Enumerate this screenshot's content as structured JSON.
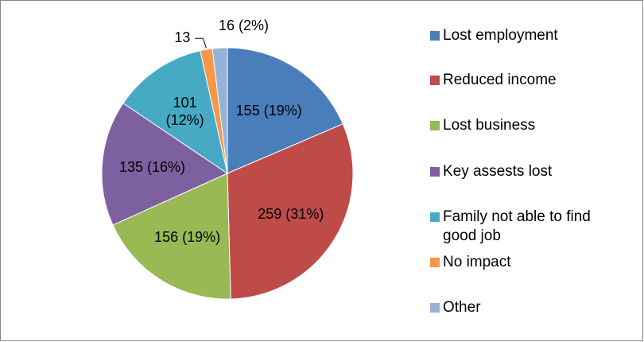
{
  "chart_data": {
    "type": "pie",
    "categories": [
      "Lost employment",
      "Reduced income",
      "Lost business",
      "Key assests lost",
      "Family not able to find good job",
      "No impact",
      "Other"
    ],
    "values": [
      155,
      259,
      156,
      135,
      101,
      13,
      16
    ],
    "value_labels": [
      "155 (19%)",
      "259 (31%)",
      "156 (19%)",
      "135 (16%)",
      "101 (12%)",
      "13",
      "16 (2%)"
    ],
    "colors": [
      "#4a7ebb",
      "#be4b48",
      "#98b954",
      "#7d60a0",
      "#46aac5",
      "#f79646",
      "#95b3d7"
    ],
    "legend": "right"
  }
}
